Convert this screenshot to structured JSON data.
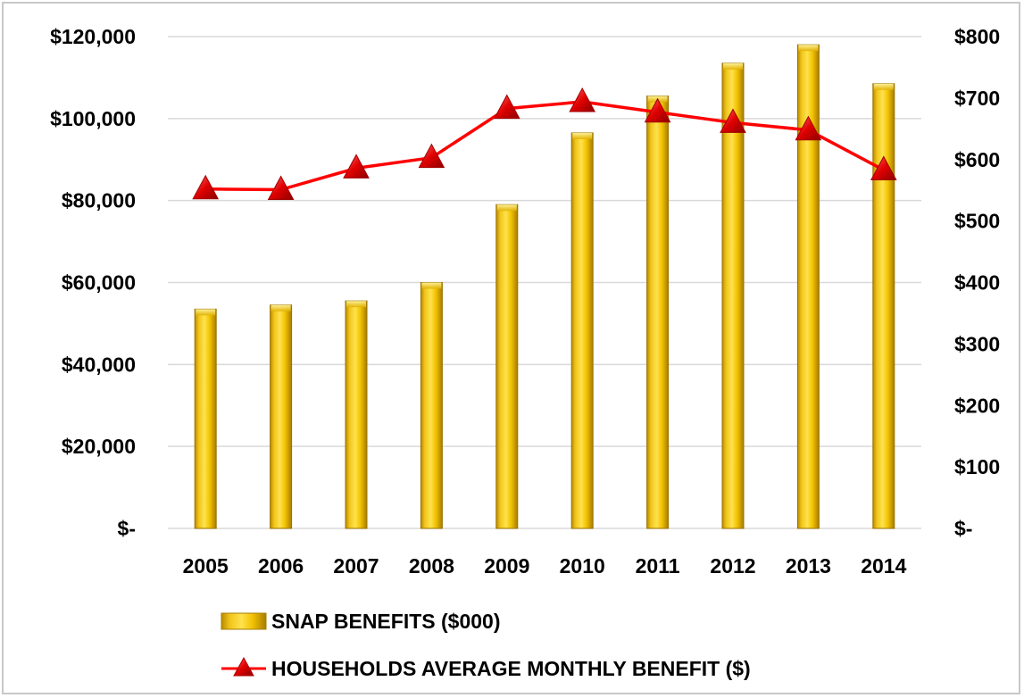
{
  "chart_data": {
    "type": "bar",
    "categories": [
      "2005",
      "2006",
      "2007",
      "2008",
      "2009",
      "2010",
      "2011",
      "2012",
      "2013",
      "2014"
    ],
    "series": [
      {
        "name": "SNAP BENEFITS ($000)",
        "type": "bar",
        "axis": "left",
        "color": "#e8b800",
        "values": [
          53500,
          54500,
          55500,
          60000,
          79000,
          96500,
          105500,
          113500,
          118000,
          108500
        ]
      },
      {
        "name": "HOUSEHOLDS AVERAGE MONTHLY BENEFIT ($)",
        "type": "line",
        "axis": "right",
        "color": "#ff0000",
        "marker": "triangle",
        "values": [
          552,
          551,
          586,
          603,
          683,
          694,
          677,
          660,
          648,
          583
        ]
      }
    ],
    "left_axis": {
      "ylim": [
        0,
        120000
      ],
      "ticks": [
        0,
        20000,
        40000,
        60000,
        80000,
        100000,
        120000
      ],
      "tick_labels": [
        "$-",
        "$20,000",
        "$40,000",
        "$60,000",
        "$80,000",
        "$100,000",
        "$120,000"
      ]
    },
    "right_axis": {
      "ylim": [
        0,
        800
      ],
      "ticks": [
        0,
        100,
        200,
        300,
        400,
        500,
        600,
        700,
        800
      ],
      "tick_labels": [
        "$-",
        "$100",
        "$200",
        "$300",
        "$400",
        "$500",
        "$600",
        "$700",
        "$800"
      ]
    },
    "grid": true,
    "legend_position": "bottom"
  }
}
